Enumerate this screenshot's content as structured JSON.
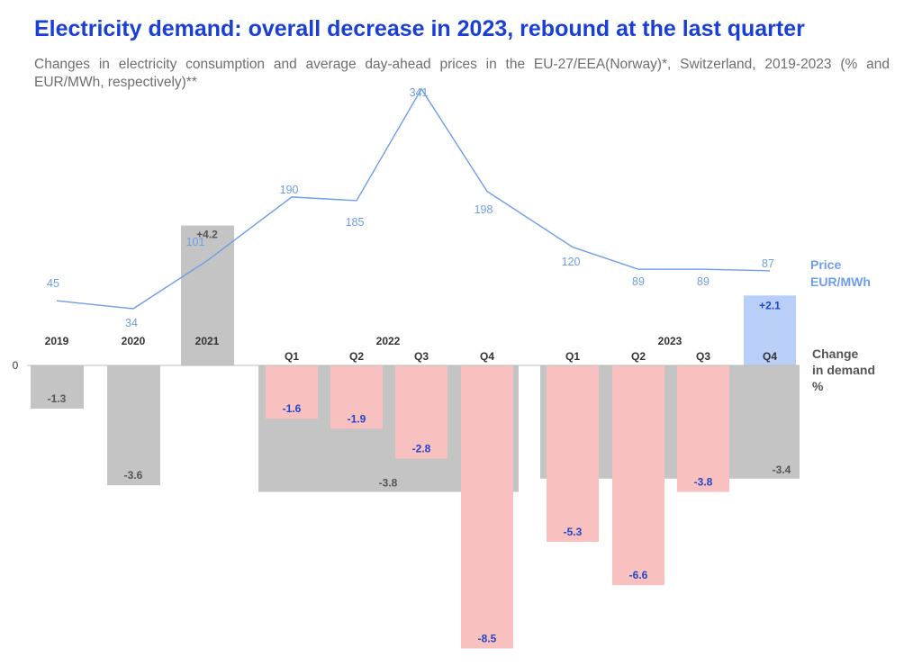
{
  "title": "Electricity demand: overall decrease in 2023, rebound at the last quarter",
  "subtitle": "Changes in electricity consumption and average day-ahead prices in the EU-27/EEA(Norway)*, Switzerland, 2019-2023 (% and EUR/MWh, respectively)**",
  "colors": {
    "title": "#1a3fd6",
    "annual_bar": "#c4c4c4",
    "quarter_decrease": "#f9c0c0",
    "quarter_increase": "#b9cff7",
    "price_line": "#6d9ee8",
    "quarter_value_text": "#1f45cc",
    "annual_value_text": "#555555"
  },
  "chart_data": {
    "type": "bar+line",
    "zero_label": "0",
    "annual_series": {
      "name": "Change in demand (annual)",
      "unit": "%",
      "categories": [
        "2019",
        "2020",
        "2021",
        "2022",
        "2023"
      ],
      "values": [
        -1.3,
        -3.6,
        4.2,
        -3.8,
        -3.4
      ],
      "labels": [
        "-1.3",
        "-3.6",
        "+4.2",
        "-3.8",
        "-3.4"
      ]
    },
    "quarterly_series": {
      "name": "Change in demand (quarterly)",
      "unit": "%",
      "categories": [
        "2022 Q1",
        "2022 Q2",
        "2022 Q3",
        "2022 Q4",
        "2023 Q1",
        "2023 Q2",
        "2023 Q3",
        "2023 Q4"
      ],
      "quarter_labels": [
        "Q1",
        "Q2",
        "Q3",
        "Q4",
        "Q1",
        "Q2",
        "Q3",
        "Q4"
      ],
      "values": [
        -1.6,
        -1.9,
        -2.8,
        -8.5,
        -5.3,
        -6.6,
        -3.8,
        2.1
      ],
      "labels": [
        "-1.6",
        "-1.9",
        "-2.8",
        "-8.5",
        "-5.3",
        "-6.6",
        "-3.8",
        "+2.1"
      ]
    },
    "price_series": {
      "name": "Price EUR/MWh",
      "categories": [
        "2019",
        "2020",
        "2021",
        "2022 Q1",
        "2022 Q2",
        "2022 Q3",
        "2022 Q4",
        "2023 Q1",
        "2023 Q2",
        "2023 Q3",
        "2023 Q4"
      ],
      "values": [
        45,
        34,
        101,
        190,
        185,
        341,
        198,
        120,
        89,
        89,
        87
      ],
      "labels": [
        "45",
        "34",
        "101",
        "190",
        "185",
        "341",
        "198",
        "120",
        "89",
        "89",
        "87"
      ]
    },
    "legend": {
      "price_line1": "Price",
      "price_line2": "EUR/MWh",
      "demand_line1": "Change",
      "demand_line2": "in demand",
      "demand_line3": "%"
    }
  }
}
